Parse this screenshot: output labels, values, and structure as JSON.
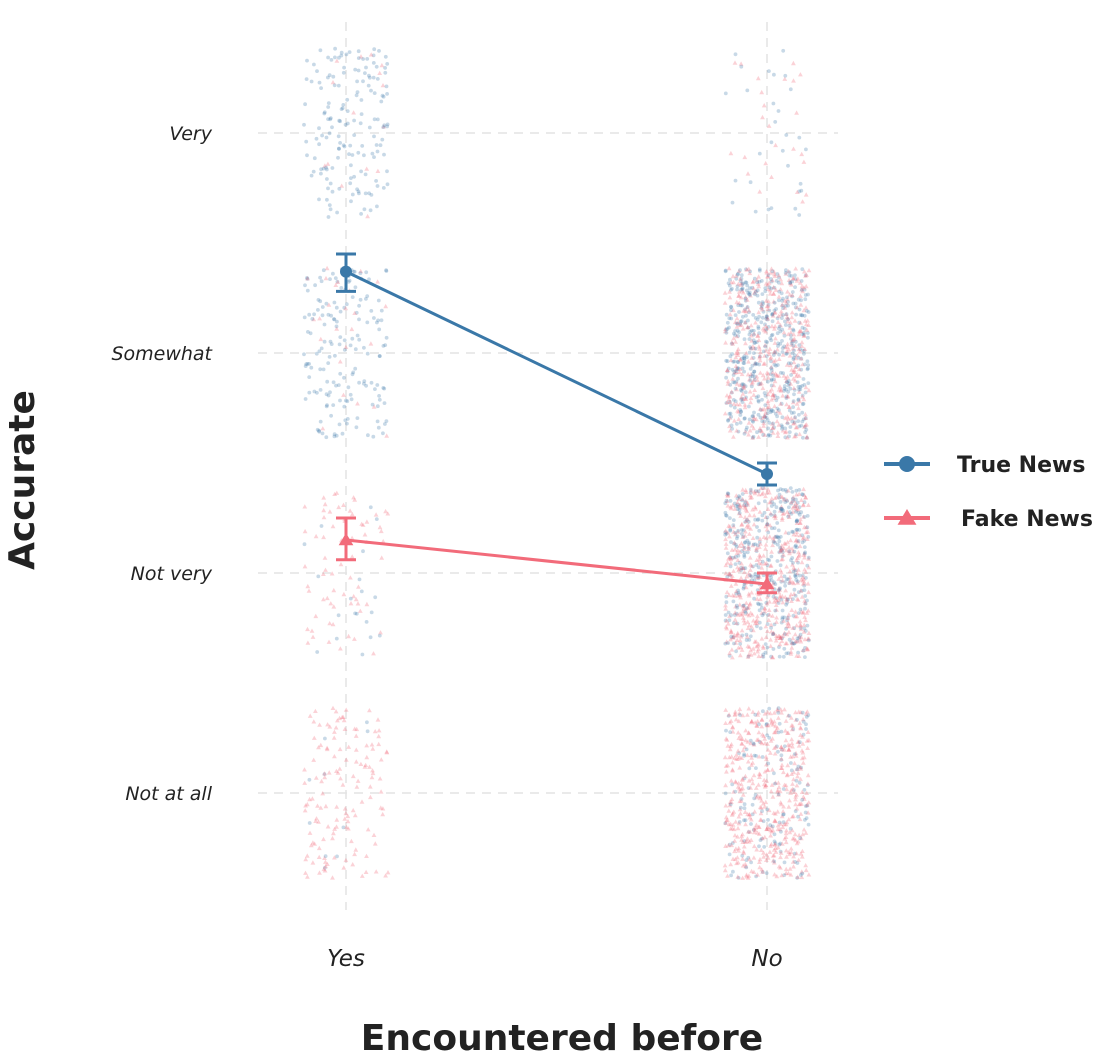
{
  "chart_data": {
    "type": "line",
    "xlabel": "Encountered before",
    "ylabel": "Accurate",
    "categories": [
      "Yes",
      "No"
    ],
    "y_levels": [
      "Not at all",
      "Not very",
      "Somewhat",
      "Very"
    ],
    "ylim": [
      0.5,
      4.5
    ],
    "grid": true,
    "legend_position": "right",
    "series": [
      {
        "name": "True News",
        "marker": "circle",
        "color": "#3a78a8",
        "values": [
          3.37,
          2.45
        ],
        "error_low": [
          3.28,
          2.4
        ],
        "error_high": [
          3.45,
          2.5
        ]
      },
      {
        "name": "Fake News",
        "marker": "triangle",
        "color": "#f26b7a",
        "values": [
          2.15,
          1.95
        ],
        "error_low": [
          2.06,
          1.91
        ],
        "error_high": [
          2.25,
          2.0
        ]
      }
    ],
    "raw_points": {
      "style": "jittered",
      "clusters": [
        {
          "x": "Yes",
          "level": "Very",
          "true_count": 160,
          "fake_count": 15
        },
        {
          "x": "Yes",
          "level": "Somewhat",
          "true_count": 170,
          "fake_count": 25
        },
        {
          "x": "Yes",
          "level": "Not very",
          "true_count": 20,
          "fake_count": 70
        },
        {
          "x": "Yes",
          "level": "Not at all",
          "true_count": 10,
          "fake_count": 140
        },
        {
          "x": "No",
          "level": "Very",
          "true_count": 30,
          "fake_count": 25
        },
        {
          "x": "No",
          "level": "Somewhat",
          "true_count": 480,
          "fake_count": 430
        },
        {
          "x": "No",
          "level": "Not very",
          "true_count": 380,
          "fake_count": 520
        },
        {
          "x": "No",
          "level": "Not at all",
          "true_count": 140,
          "fake_count": 480
        }
      ]
    }
  }
}
